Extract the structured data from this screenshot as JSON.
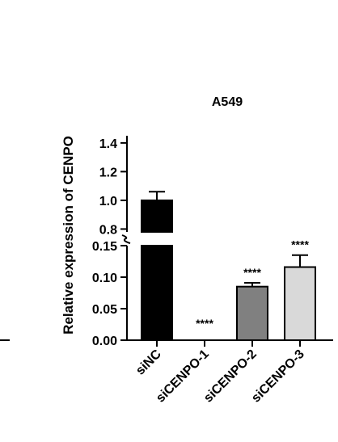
{
  "chart_data": {
    "type": "bar",
    "title": "A549",
    "xlabel": "",
    "ylabel": "Relative expression of CENPO",
    "categories": [
      "siNC",
      "siCENPO-1",
      "siCENPO-2",
      "siCENPO-3"
    ],
    "values": [
      1.0,
      0.0,
      0.085,
      0.116
    ],
    "errors": [
      0.06,
      0.0,
      0.006,
      0.019
    ],
    "significance": [
      "",
      "****",
      "****",
      "****"
    ],
    "bar_colors": [
      "#000000",
      "#ffffff",
      "#808080",
      "#d9d9d9"
    ],
    "y_axis_break": {
      "lower_range": [
        0,
        0.15
      ],
      "upper_range": [
        0.78,
        1.45
      ],
      "lower_ticks": [
        "0.00",
        "0.05",
        "0.10",
        "0.15"
      ],
      "upper_ticks": [
        "0.8",
        "1.0",
        "1.2",
        "1.4"
      ]
    },
    "grid": false,
    "legend": "none"
  }
}
